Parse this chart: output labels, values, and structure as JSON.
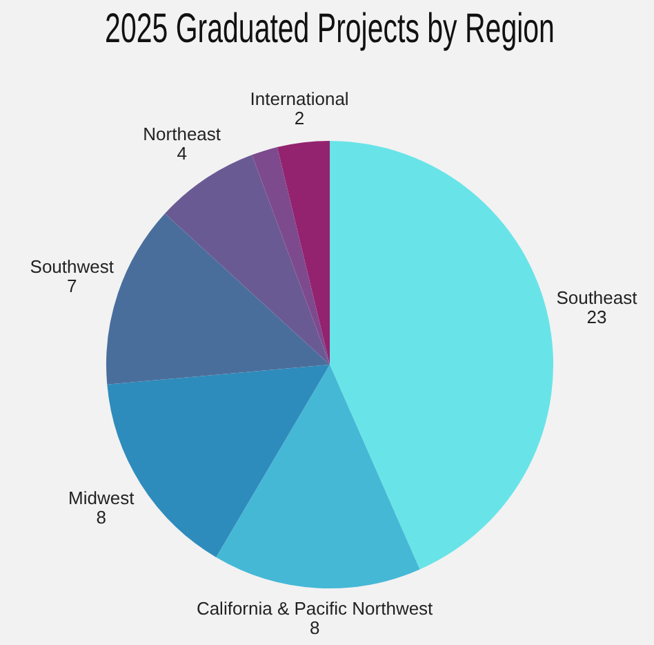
{
  "chart_data": {
    "type": "pie",
    "title": "2025 Graduated Projects by Region",
    "categories": [
      "Southeast",
      "California & Pacific Northwest",
      "Midwest",
      "Southwest",
      "Northeast",
      null,
      "International"
    ],
    "values": [
      23,
      8,
      8,
      7,
      4,
      1,
      2
    ],
    "value_labels": [
      "23",
      "8",
      "8",
      "7",
      "4",
      null,
      "2"
    ],
    "colors": [
      "#68e4e8",
      "#45b8d6",
      "#2e8cbc",
      "#4a6e9c",
      "#6a5a94",
      "#7e4a8e",
      "#93236e"
    ],
    "legend": false
  }
}
